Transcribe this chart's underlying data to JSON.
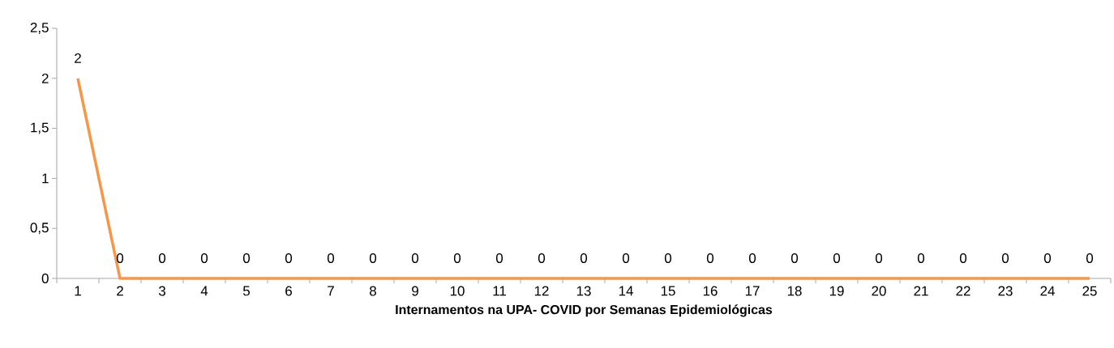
{
  "chart_data": {
    "type": "line",
    "xlabel": "Internamentos na UPA- COVID por Semanas Epidemiológicas",
    "categories": [
      "1",
      "2",
      "3",
      "4",
      "5",
      "6",
      "7",
      "8",
      "9",
      "10",
      "11",
      "12",
      "13",
      "14",
      "15",
      "16",
      "17",
      "18",
      "19",
      "20",
      "21",
      "22",
      "23",
      "24",
      "25"
    ],
    "values": [
      2,
      0,
      0,
      0,
      0,
      0,
      0,
      0,
      0,
      0,
      0,
      0,
      0,
      0,
      0,
      0,
      0,
      0,
      0,
      0,
      0,
      0,
      0,
      0,
      0
    ],
    "color": "#f79646",
    "ylim": [
      0,
      2.5
    ],
    "yticks": [
      0,
      {
        "value": 0.5,
        "label": "0,5"
      },
      1,
      {
        "value": 1.5,
        "label": "1,5"
      },
      2,
      {
        "value": 2.5,
        "label": "2,5"
      }
    ],
    "data_labels": true,
    "marker": "none",
    "line_style": "solid"
  }
}
